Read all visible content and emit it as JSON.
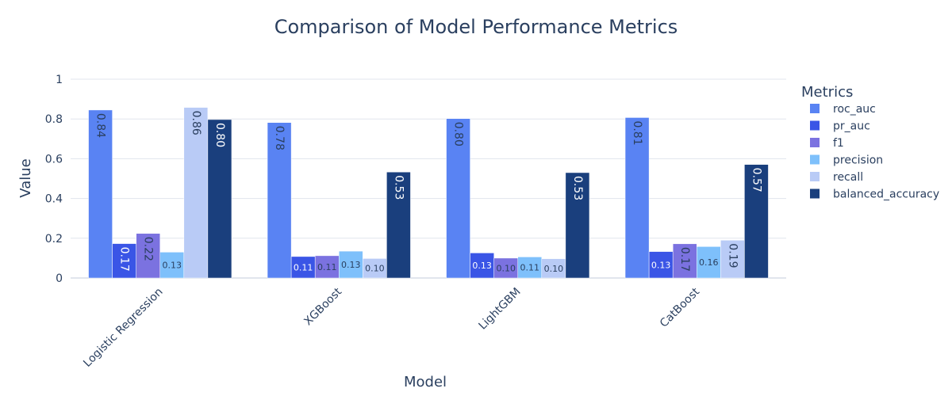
{
  "chart_data": {
    "type": "bar",
    "title": "Comparison of Model Performance Metrics",
    "xlabel": "Model",
    "ylabel": "Value",
    "ylim": [
      0,
      1
    ],
    "yticks": [
      0,
      0.2,
      0.4,
      0.6,
      0.8,
      1
    ],
    "ytick_labels": [
      "0",
      "0.2",
      "0.4",
      "0.6",
      "0.8",
      "1"
    ],
    "grid": true,
    "barmode": "group",
    "legend_title": "Metrics",
    "legend_position": "right",
    "categories": [
      "Logistic Regression",
      "XGBoost",
      "LightGBM",
      "CatBoost"
    ],
    "series": [
      {
        "name": "roc_auc",
        "color": "#5983f3",
        "values": [
          0.845,
          0.782,
          0.802,
          0.807
        ],
        "labels": [
          "0.84",
          "0.78",
          "0.80",
          "0.81"
        ],
        "label_color": "#2a3f5f"
      },
      {
        "name": "pr_auc",
        "color": "#3a55e6",
        "values": [
          0.173,
          0.108,
          0.126,
          0.133
        ],
        "labels": [
          "0.17",
          "0.11",
          "0.13",
          "0.13"
        ],
        "label_color": "#ffffff"
      },
      {
        "name": "f1",
        "color": "#7b72e0",
        "values": [
          0.224,
          0.112,
          0.1,
          0.172
        ],
        "labels": [
          "0.22",
          "0.11",
          "0.10",
          "0.17"
        ],
        "label_color": "#2a3f5f"
      },
      {
        "name": "precision",
        "color": "#7ec0fb",
        "values": [
          0.13,
          0.135,
          0.106,
          0.158
        ],
        "labels": [
          "0.13",
          "0.13",
          "0.11",
          "0.16"
        ],
        "label_color": "#2a3f5f"
      },
      {
        "name": "recall",
        "color": "#b9cbf6",
        "values": [
          0.858,
          0.098,
          0.097,
          0.19
        ],
        "labels": [
          "0.86",
          "0.10",
          "0.10",
          "0.19"
        ],
        "label_color": "#2a3f5f"
      },
      {
        "name": "balanced_accuracy",
        "color": "#1a3f7d",
        "values": [
          0.797,
          0.533,
          0.53,
          0.571
        ],
        "labels": [
          "0.80",
          "0.53",
          "0.53",
          "0.57"
        ],
        "label_color": "#ffffff"
      }
    ]
  }
}
